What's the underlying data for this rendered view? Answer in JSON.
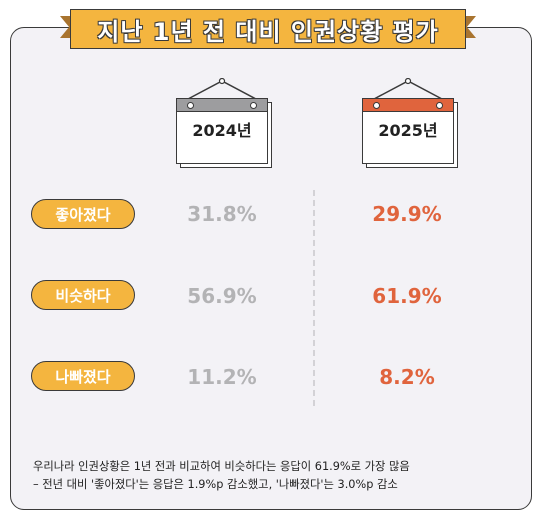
{
  "title": "지난 1년 전 대비 인권상황 평가",
  "chart_data": {
    "type": "table",
    "columns": [
      "2024년",
      "2025년"
    ],
    "rows": [
      {
        "label": "좋아졌다",
        "values": [
          "31.8%",
          "29.9%"
        ]
      },
      {
        "label": "비슷하다",
        "values": [
          "56.9%",
          "61.9%"
        ]
      },
      {
        "label": "나빠졌다",
        "values": [
          "11.2%",
          "8.2%"
        ]
      }
    ],
    "series": [
      {
        "name": "2024년",
        "values": [
          31.8,
          56.9,
          11.2
        ],
        "color": "#b3b3b5"
      },
      {
        "name": "2025년",
        "values": [
          29.9,
          61.9,
          8.2
        ],
        "color": "#e0643d"
      }
    ],
    "categories": [
      "좋아졌다",
      "비슷하다",
      "나빠졌다"
    ]
  },
  "colors": {
    "accent": "#f4b53f",
    "calendar_2024_bar": "#9d9d9f",
    "calendar_2025_bar": "#e0643d",
    "value_2024": "#b3b3b5",
    "value_2025": "#e0643d",
    "card_bg": "#f3f2f6"
  },
  "footnote": {
    "line1": "우리나라 인권상황은 1년 전과 비교하여 비슷하다는 응답이 61.9%로 가장 많음",
    "line2": "– 전년 대비 '좋아졌다'는 응답은 1.9%p 감소했고, '나빠졌다'는 3.0%p 감소"
  }
}
